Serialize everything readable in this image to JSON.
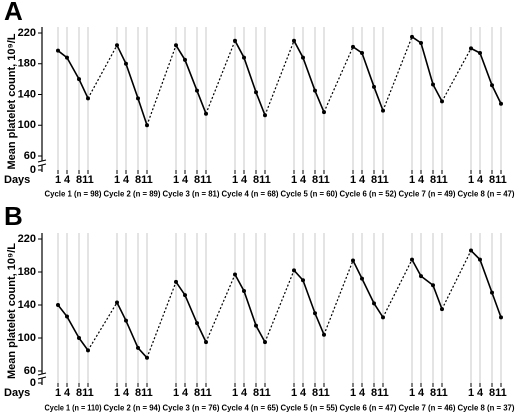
{
  "chart_data": [
    {
      "type": "line",
      "panel": "A",
      "ylabel": "Mean platelet count, 10⁹/L",
      "xlabel": "Days",
      "days": [
        1,
        4,
        8,
        11
      ],
      "ylim": [
        60,
        220
      ],
      "yticks": [
        0,
        60,
        100,
        140,
        180,
        220
      ],
      "axis_break": true,
      "grid": true,
      "color": "#000000",
      "cycles": [
        {
          "label": "Cycle 1 (n = 98)",
          "values": [
            197,
            188,
            160,
            135
          ]
        },
        {
          "label": "Cycle 2 (n = 89)",
          "values": [
            204,
            180,
            135,
            100
          ]
        },
        {
          "label": "Cycle 3 (n = 81)",
          "values": [
            204,
            185,
            145,
            115
          ]
        },
        {
          "label": "Cycle 4 (n = 68)",
          "values": [
            210,
            188,
            143,
            113
          ]
        },
        {
          "label": "Cycle 5 (n = 60)",
          "values": [
            210,
            188,
            145,
            117
          ]
        },
        {
          "label": "Cycle 6 (n = 52)",
          "values": [
            202,
            194,
            150,
            119
          ]
        },
        {
          "label": "Cycle 7 (n = 49)",
          "values": [
            215,
            207,
            153,
            131
          ]
        },
        {
          "label": "Cycle 8 (n = 47)",
          "values": [
            200,
            194,
            152,
            128
          ]
        }
      ]
    },
    {
      "type": "line",
      "panel": "B",
      "ylabel": "Mean platelet count, 10⁹/L",
      "xlabel": "Days",
      "days": [
        1,
        4,
        8,
        11
      ],
      "ylim": [
        60,
        220
      ],
      "yticks": [
        0,
        60,
        100,
        140,
        180,
        220
      ],
      "axis_break": true,
      "grid": true,
      "color": "#000000",
      "cycles": [
        {
          "label": "Cycle 1 (n = 110)",
          "values": [
            140,
            126,
            100,
            85
          ]
        },
        {
          "label": "Cycle 2 (n = 94)",
          "values": [
            143,
            121,
            88,
            76
          ]
        },
        {
          "label": "Cycle 3 (n = 76)",
          "values": [
            168,
            152,
            118,
            95
          ]
        },
        {
          "label": "Cycle 4 (n = 65)",
          "values": [
            177,
            157,
            115,
            95
          ]
        },
        {
          "label": "Cycle 5 (n = 55)",
          "values": [
            182,
            170,
            130,
            104
          ]
        },
        {
          "label": "Cycle 6 (n = 47)",
          "values": [
            194,
            172,
            142,
            125
          ]
        },
        {
          "label": "Cycle 7 (n = 46)",
          "values": [
            195,
            175,
            164,
            135
          ]
        },
        {
          "label": "Cycle 8 (n = 37)",
          "values": [
            206,
            195,
            155,
            125
          ]
        }
      ]
    }
  ]
}
